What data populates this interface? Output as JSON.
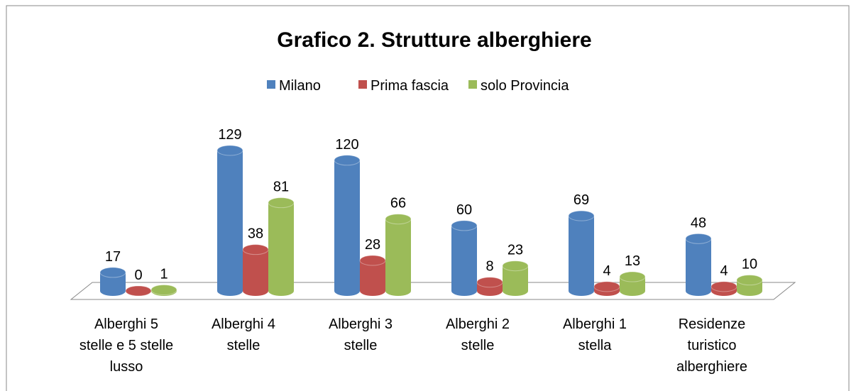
{
  "chart_data": {
    "type": "bar",
    "title": "Grafico 2. Strutture alberghiere",
    "categories": [
      "Alberghi 5 stelle e 5 stelle lusso",
      "Alberghi 4 stelle",
      "Alberghi 3 stelle",
      "Alberghi 2 stelle",
      "Alberghi 1 stella",
      "Residenze turistico alberghiere"
    ],
    "series": [
      {
        "name": "Milano",
        "color": "#4f81bd",
        "values": [
          17,
          129,
          120,
          60,
          69,
          48
        ]
      },
      {
        "name": "Prima fascia",
        "color": "#c0504d",
        "values": [
          0,
          38,
          28,
          8,
          4,
          4
        ]
      },
      {
        "name": "solo Provincia",
        "color": "#9bbb59",
        "values": [
          1,
          81,
          66,
          23,
          13,
          10
        ]
      }
    ],
    "legend": "top"
  }
}
